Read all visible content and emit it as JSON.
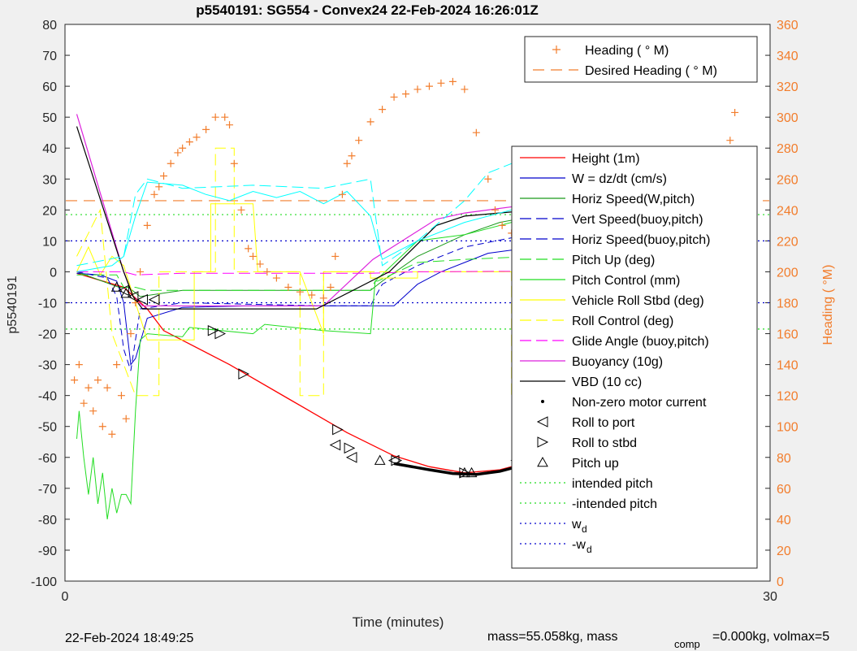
{
  "chart_data": {
    "type": "line",
    "title": "p5540191: SG554 - Convex24 22-Feb-2024 16:26:01Z",
    "xlabel": "Time (minutes)",
    "ylabel_left": "p5540191",
    "ylabel_right": "Heading (  °M)",
    "xlim": [
      0,
      30
    ],
    "ylim_left": [
      -100,
      80
    ],
    "ylim_right": [
      0,
      360
    ],
    "x_ticks": [
      0,
      30
    ],
    "y_ticks_left": [
      80,
      70,
      60,
      50,
      40,
      30,
      20,
      10,
      0,
      -10,
      -20,
      -30,
      -40,
      -50,
      -60,
      -70,
      -80,
      -90,
      -100
    ],
    "y_ticks_right": [
      360,
      340,
      320,
      300,
      280,
      260,
      240,
      220,
      200,
      180,
      160,
      140,
      120,
      100,
      80,
      60,
      40,
      20,
      0
    ],
    "grid": false,
    "legend_right_axis": [
      {
        "label": "Heading (  ° M)",
        "color": "#f27d2c",
        "style": "plus"
      },
      {
        "label": "Desired Heading (    ° M)",
        "color": "#f27d2c",
        "style": "dashed"
      }
    ],
    "legend_left_axis": [
      {
        "label": "Height (1m)",
        "color": "#ff0000",
        "style": "solid"
      },
      {
        "label": "W = dz/dt (cm/s)",
        "color": "#0000cc",
        "style": "solid"
      },
      {
        "label": "Horiz Speed(W,pitch)",
        "color": "#1a9a1a",
        "style": "solid"
      },
      {
        "label": "Vert Speed(buoy,pitch)",
        "color": "#0000cc",
        "style": "dashed"
      },
      {
        "label": "Horiz Speed(buoy,pitch)",
        "color": "#0000cc",
        "style": "dashed"
      },
      {
        "label": "Pitch Up (deg)",
        "color": "#22dd22",
        "style": "dashed"
      },
      {
        "label": "Pitch Control (mm)",
        "color": "#22dd22",
        "style": "solid"
      },
      {
        "label": "Vehicle Roll Stbd (deg)",
        "color": "#ffff00",
        "style": "solid"
      },
      {
        "label": "Roll Control (deg)",
        "color": "#ffff00",
        "style": "dashed"
      },
      {
        "label": "Glide Angle (buoy,pitch)",
        "color": "#ff00ff",
        "style": "dashed"
      },
      {
        "label": "Buoyancy (10g)",
        "color": "#dd22dd",
        "style": "solid"
      },
      {
        "label": "VBD (10 cc)",
        "color": "#000000",
        "style": "solid"
      },
      {
        "label": "Non-zero motor current",
        "color": "#000000",
        "style": "dot"
      },
      {
        "label": "Roll to port",
        "color": "#000000",
        "style": "tri-left"
      },
      {
        "label": "Roll to stbd",
        "color": "#000000",
        "style": "tri-right"
      },
      {
        "label": "Pitch up",
        "color": "#000000",
        "style": "tri-up"
      },
      {
        "label": "intended pitch",
        "color": "#22dd22",
        "style": "dotted"
      },
      {
        "label": "-intended pitch",
        "color": "#22dd22",
        "style": "dotted"
      },
      {
        "label": "w",
        "sub": "d",
        "color": "#0000cc",
        "style": "dotted"
      },
      {
        "label": "-w",
        "sub": "d",
        "color": "#0000cc",
        "style": "dotted"
      }
    ],
    "series": [
      {
        "name": "Height (1m)",
        "axis": "left",
        "color": "#ff0000",
        "dash": "",
        "width": 1.3,
        "x": [
          0.5,
          2.5,
          3.5,
          4.2,
          7,
          9.5,
          12,
          14,
          15.5,
          17,
          18.5,
          20,
          23,
          25.5,
          27.8
        ],
        "y": [
          -0.5,
          -5,
          -12,
          -19,
          -30,
          -41,
          -52,
          -59.5,
          -63,
          -65,
          -64,
          -61,
          -52,
          -39,
          -2
        ]
      },
      {
        "name": "W = dz/dt (cm/s)",
        "axis": "left",
        "color": "#0000cc",
        "dash": "",
        "width": 1,
        "x": [
          0.5,
          1.5,
          2.2,
          2.5,
          2.8,
          3.0,
          3.5,
          5,
          8,
          11,
          14,
          15,
          16,
          17,
          18,
          19,
          20,
          22,
          25,
          28
        ],
        "y": [
          -0.5,
          -1,
          -3,
          -10,
          -30,
          -28,
          -15,
          -11.5,
          -11,
          -11,
          -11,
          -4,
          0,
          3,
          6,
          7,
          8,
          9,
          10,
          10.5
        ]
      },
      {
        "name": "Horiz Speed(W,pitch)",
        "axis": "left",
        "color": "#1a9a1a",
        "dash": "",
        "width": 1,
        "x": [
          0.5,
          2.3,
          2.7,
          3.2,
          5,
          8,
          11,
          13,
          13.5,
          15,
          17,
          18.5,
          20,
          22,
          25,
          28
        ],
        "y": [
          0,
          -5,
          -5,
          -8,
          -6,
          -6,
          -6,
          -6,
          -3,
          5,
          12,
          16,
          18,
          19,
          20,
          19
        ]
      },
      {
        "name": "Vert Speed(buoy,pitch)",
        "axis": "left",
        "color": "#0000cc",
        "dash": "8,5",
        "width": 1,
        "x": [
          0.5,
          1.8,
          2.2,
          2.5,
          2.8,
          3.2,
          5,
          8,
          11,
          13,
          13.5,
          15,
          17,
          19,
          21,
          24,
          28
        ],
        "y": [
          0,
          -2,
          -8,
          -25,
          -32,
          -12,
          -10,
          -10.5,
          -11,
          -11,
          -4,
          2,
          8,
          11,
          13,
          15,
          16
        ]
      },
      {
        "name": "Pitch Up (deg)",
        "axis": "left",
        "color": "#22dd22",
        "dash": "14,6",
        "width": 1,
        "x": [
          0.5,
          2.2,
          2.5,
          3.0,
          3.5,
          13,
          13.2,
          13.3,
          15,
          17,
          20,
          28
        ],
        "y": [
          -1,
          -1,
          -5,
          -5,
          -6,
          -6,
          -3,
          -3,
          3,
          4,
          5,
          5
        ]
      },
      {
        "name": "Pitch Control (mm)",
        "axis": "left",
        "color": "#22dd22",
        "dash": "",
        "width": 1,
        "x": [
          0.5,
          0.6,
          0.8,
          1.0,
          1.2,
          1.4,
          1.6,
          1.8,
          2.0,
          2.2,
          2.4,
          2.6,
          2.8,
          3.0,
          3.2,
          3.5,
          5,
          5.3,
          8,
          8.5,
          11,
          13,
          13.2,
          15,
          17,
          19,
          21,
          24,
          28
        ],
        "y": [
          -54,
          -45,
          -60,
          -72,
          -60,
          -75,
          -65,
          -80,
          -70,
          -78,
          -72,
          -72,
          -75,
          -45,
          -22,
          -20,
          -21,
          -18,
          -20,
          -17,
          -19,
          -20,
          -3,
          10,
          12,
          16,
          17,
          18,
          19
        ]
      },
      {
        "name": "Vehicle Roll Stbd (deg)",
        "axis": "left",
        "color": "#ffff00",
        "dash": "",
        "width": 1,
        "x": [
          0.5,
          1.0,
          1.5,
          2.0,
          2.5,
          3.0,
          3.5,
          4.0,
          5.5,
          5.5,
          6.0,
          6.2,
          6.2,
          8.0,
          8.2,
          8.2,
          9.0,
          10,
          10,
          11,
          11,
          13,
          13,
          15,
          15,
          17,
          17,
          20,
          20,
          22,
          22,
          28
        ],
        "y": [
          0,
          8,
          -1,
          5,
          2,
          -10,
          -22,
          -22,
          -22,
          0,
          0,
          0,
          22,
          22,
          0,
          0,
          0,
          0,
          0,
          -20,
          0,
          0,
          -2,
          -2,
          0,
          0,
          0,
          0,
          0,
          0,
          0,
          0
        ]
      },
      {
        "name": "Roll Control (deg)",
        "axis": "left",
        "color": "#ffff00",
        "dash": "14,6",
        "width": 1,
        "x": [
          0.5,
          1.5,
          2.0,
          3.0,
          4.0,
          4.0,
          6.4,
          6.4,
          7.2,
          7.2,
          8.2,
          10,
          10,
          11,
          11,
          15,
          15,
          16.5,
          16.5,
          17.8,
          17.8,
          19,
          19,
          21,
          21,
          22.5,
          22.5,
          28
        ],
        "y": [
          5,
          20,
          -20,
          -40,
          -40,
          0,
          0,
          40,
          40,
          0,
          0,
          0,
          -40,
          -40,
          0,
          0,
          0,
          0,
          0,
          0,
          0,
          0,
          -40,
          -40,
          0,
          0,
          -40,
          -40
        ]
      },
      {
        "name": "Glide Angle (buoy,pitch)",
        "axis": "left",
        "color": "#ff00ff",
        "dash": "14,6",
        "width": 1,
        "x": [
          0.5,
          2.5,
          3.0,
          5,
          13,
          15,
          28
        ],
        "y": [
          0,
          0,
          -1,
          -0.5,
          -0.5,
          0,
          0.5
        ]
      },
      {
        "name": "Buoyancy (10g)",
        "axis": "left",
        "color": "#dd22dd",
        "dash": "",
        "width": 1.2,
        "x": [
          0.5,
          2.5,
          2.9,
          3.3,
          11,
          13.1,
          15.8,
          17,
          20,
          28
        ],
        "y": [
          51,
          0,
          -8,
          -11,
          -11,
          4,
          17,
          19,
          22,
          23
        ]
      },
      {
        "name": "VBD (10 cc)",
        "axis": "left",
        "color": "#000000",
        "dash": "",
        "width": 1.2,
        "x": [
          0.5,
          2.5,
          2.9,
          3.3,
          10.7,
          13.8,
          15.8,
          17,
          20,
          28
        ],
        "y": [
          47,
          0,
          -8,
          -12,
          -12,
          0,
          15,
          18,
          20,
          20
        ]
      },
      {
        "name": "Speed cyan",
        "axis": "left",
        "color": "#00ffff",
        "dash": "",
        "width": 1,
        "x": [
          0.5,
          2.0,
          2.5,
          3.0,
          3.5,
          5,
          6,
          7,
          8,
          9,
          10,
          11,
          12,
          13,
          13.5,
          15,
          17,
          19,
          21,
          23,
          25,
          28
        ],
        "y": [
          0,
          2,
          5,
          18,
          29,
          28,
          25,
          23,
          26,
          24,
          26,
          22,
          26,
          18,
          4,
          10,
          16,
          20,
          24,
          24,
          24,
          25
        ]
      },
      {
        "name": "Speed cyan dashed",
        "axis": "left",
        "color": "#00ffff",
        "dash": "14,6",
        "width": 1,
        "x": [
          0.5,
          2.5,
          3.0,
          3.5,
          5,
          8,
          11,
          13,
          13.5,
          15,
          17,
          18,
          20,
          22,
          25,
          28
        ],
        "y": [
          2,
          5,
          25,
          30,
          27,
          28,
          27,
          30,
          2,
          10,
          23,
          32,
          38,
          40,
          40,
          40
        ]
      }
    ],
    "reference_lines": [
      {
        "name": "Desired Heading",
        "axis": "right",
        "value": 246,
        "color": "#f27d2c",
        "dash": "14,8"
      },
      {
        "name": "intended pitch",
        "axis": "left",
        "value": 18.5,
        "color": "#22dd22",
        "dash": "2,4"
      },
      {
        "name": "-intended pitch",
        "axis": "left",
        "value": -18.5,
        "color": "#22dd22",
        "dash": "2,4"
      },
      {
        "name": "w d",
        "axis": "left",
        "value": 10,
        "color": "#0000cc",
        "dash": "2,4"
      },
      {
        "name": "-w d",
        "axis": "left",
        "value": -10,
        "color": "#0000cc",
        "dash": "2,4"
      }
    ],
    "heading_points": {
      "axis": "right",
      "color": "#f27d2c",
      "x": [
        0.4,
        0.6,
        0.8,
        1.0,
        1.2,
        1.4,
        1.6,
        1.8,
        2.0,
        2.2,
        2.4,
        2.6,
        2.8,
        3.0,
        3.2,
        3.5,
        3.8,
        4.0,
        4.2,
        4.5,
        4.8,
        5.0,
        5.3,
        5.6,
        6.0,
        6.4,
        6.8,
        7.0,
        7.2,
        7.5,
        7.8,
        8.0,
        8.3,
        8.6,
        9.0,
        9.5,
        10.0,
        10.5,
        11.0,
        11.3,
        11.5,
        11.8,
        12.0,
        12.2,
        12.5,
        13.0,
        13.5,
        14.0,
        14.5,
        15.0,
        15.5,
        16.0,
        16.5,
        17.0,
        17.5,
        18.0,
        18.3,
        18.6,
        19.0,
        19.5,
        20.0,
        20.5,
        21.0,
        21.5,
        22.0,
        22.5,
        23.0,
        23.5,
        24.0,
        24.5,
        25.0,
        25.5,
        26.0,
        26.5,
        27.0,
        27.5,
        28.0,
        28.3,
        28.5
      ],
      "y": [
        130,
        140,
        115,
        125,
        110,
        130,
        100,
        125,
        95,
        140,
        120,
        105,
        160,
        180,
        200,
        230,
        250,
        255,
        262,
        270,
        277,
        280,
        284,
        287,
        292,
        300,
        300,
        295,
        270,
        240,
        215,
        210,
        205,
        200,
        196,
        190,
        187,
        185,
        183,
        190,
        210,
        250,
        270,
        275,
        285,
        297,
        305,
        313,
        315,
        318,
        320,
        322,
        323,
        318,
        290,
        260,
        240,
        230,
        225,
        215,
        212,
        220,
        235,
        243,
        254,
        262,
        265,
        240,
        225,
        213,
        215,
        225,
        236,
        244,
        252,
        260,
        270,
        285,
        303
      ]
    },
    "motor_current_segments": [
      {
        "axis": "left",
        "x": [
          14.0,
          15.5,
          16.5,
          17.5,
          18.5,
          19.5
        ],
        "y": [
          -62,
          -64,
          -65.2,
          -65.5,
          -64.5,
          -62.5
        ]
      },
      {
        "axis": "left",
        "x": [
          21.8,
          22.8
        ],
        "y": [
          -55,
          -51
        ]
      }
    ],
    "roll_to_port_markers": {
      "axis": "left",
      "x": [
        2.5,
        2.9,
        3.3,
        3.8,
        11.5,
        12.2,
        14.0,
        19.2,
        21.5,
        23.0
      ],
      "y": [
        -6,
        -8,
        -9,
        -9,
        -56,
        -60,
        -61,
        -61,
        -33,
        -38
      ]
    },
    "roll_to_stbd_markers": {
      "axis": "left",
      "x": [
        6.3,
        6.6,
        7.6,
        11.6,
        12.1,
        14.1,
        17.0,
        19.5,
        24.0
      ],
      "y": [
        -19,
        -20,
        -33,
        -51,
        -57,
        -61,
        -65,
        -61,
        -54
      ]
    },
    "pitch_up_markers": {
      "axis": "left",
      "x": [
        2.2,
        2.6,
        13.4,
        17.0,
        17.3
      ],
      "y": [
        -5,
        -7,
        -61,
        -65,
        -65
      ]
    },
    "footer": {
      "date": "22-Feb-2024 18:49:25",
      "mass_text": "mass=55.058kg, mass",
      "comp_sub": "comp",
      "comp_text": "=0.000kg, volmax=5"
    }
  }
}
